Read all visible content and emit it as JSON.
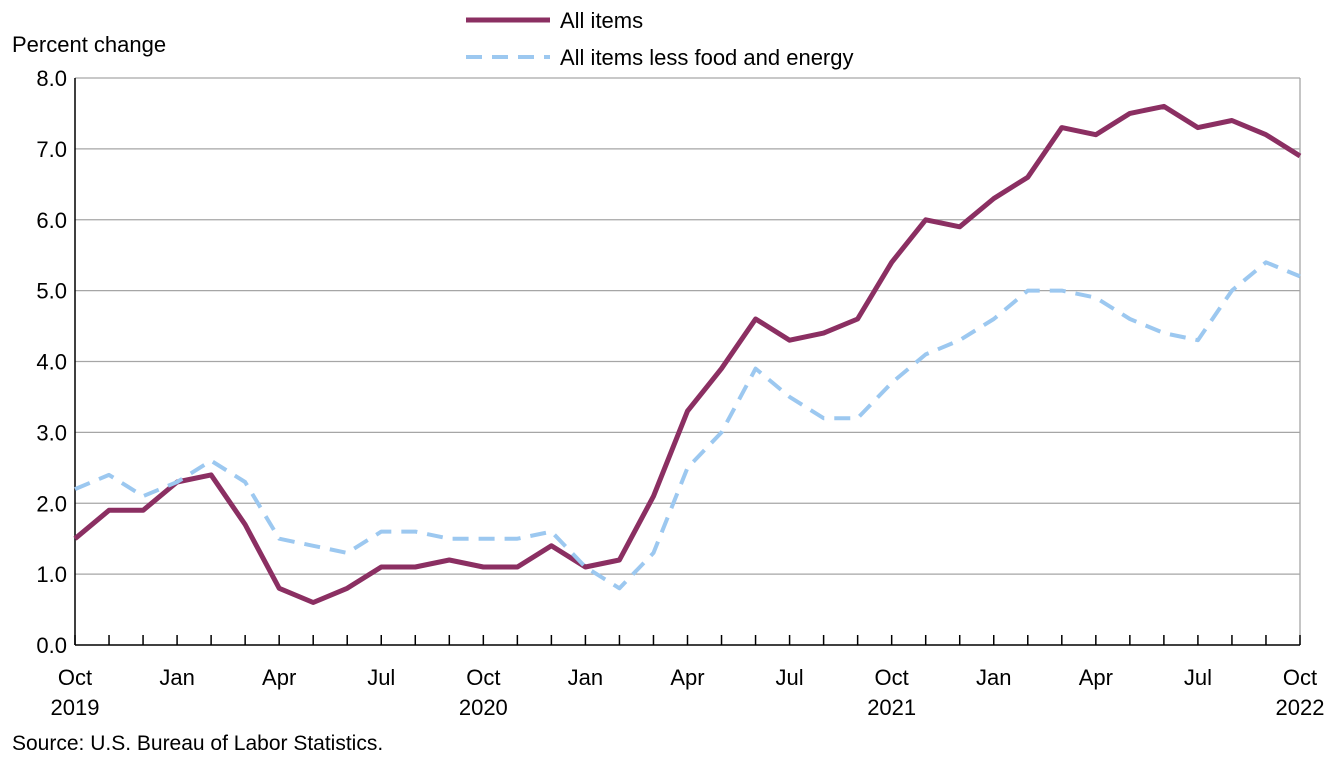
{
  "chart_data": {
    "type": "line",
    "ylabel": "Percent change",
    "ylim": [
      0,
      8
    ],
    "yticks": [
      "0.0",
      "1.0",
      "2.0",
      "3.0",
      "4.0",
      "5.0",
      "6.0",
      "7.0",
      "8.0"
    ],
    "x": [
      "Oct 2019",
      "Nov 2019",
      "Dec 2019",
      "Jan 2020",
      "Feb 2020",
      "Mar 2020",
      "Apr 2020",
      "May 2020",
      "Jun 2020",
      "Jul 2020",
      "Aug 2020",
      "Sep 2020",
      "Oct 2020",
      "Nov 2020",
      "Dec 2020",
      "Jan 2021",
      "Feb 2021",
      "Mar 2021",
      "Apr 2021",
      "May 2021",
      "Jun 2021",
      "Jul 2021",
      "Aug 2021",
      "Sep 2021",
      "Oct 2021",
      "Nov 2021",
      "Dec 2021",
      "Jan 2022",
      "Feb 2022",
      "Mar 2022",
      "Apr 2022",
      "May 2022",
      "Jun 2022",
      "Jul 2022",
      "Aug 2022",
      "Sep 2022",
      "Oct 2022"
    ],
    "xtick_labels": [
      {
        "index": 0,
        "line1": "Oct",
        "line2": "2019"
      },
      {
        "index": 3,
        "line1": "Jan",
        "line2": ""
      },
      {
        "index": 6,
        "line1": "Apr",
        "line2": ""
      },
      {
        "index": 9,
        "line1": "Jul",
        "line2": ""
      },
      {
        "index": 12,
        "line1": "Oct",
        "line2": "2020"
      },
      {
        "index": 15,
        "line1": "Jan",
        "line2": ""
      },
      {
        "index": 18,
        "line1": "Apr",
        "line2": ""
      },
      {
        "index": 21,
        "line1": "Jul",
        "line2": ""
      },
      {
        "index": 24,
        "line1": "Oct",
        "line2": "2021"
      },
      {
        "index": 27,
        "line1": "Jan",
        "line2": ""
      },
      {
        "index": 30,
        "line1": "Apr",
        "line2": ""
      },
      {
        "index": 33,
        "line1": "Jul",
        "line2": ""
      },
      {
        "index": 36,
        "line1": "Oct",
        "line2": "2022"
      }
    ],
    "series": [
      {
        "name": "All items",
        "color": "#8b2f62",
        "style": "solid",
        "values": [
          1.5,
          1.9,
          1.9,
          2.3,
          2.4,
          1.7,
          0.8,
          0.6,
          0.8,
          1.1,
          1.1,
          1.2,
          1.1,
          1.1,
          1.4,
          1.1,
          1.2,
          2.1,
          3.3,
          3.9,
          4.6,
          4.3,
          4.4,
          4.6,
          5.4,
          6.0,
          5.9,
          6.3,
          6.6,
          7.3,
          7.2,
          7.5,
          7.6,
          7.3,
          7.4,
          7.2,
          6.9
        ]
      },
      {
        "name": "All items less food and energy",
        "color": "#9cc8f0",
        "style": "dashed",
        "values": [
          2.2,
          2.4,
          2.1,
          2.3,
          2.6,
          2.3,
          1.5,
          1.4,
          1.3,
          1.6,
          1.6,
          1.5,
          1.5,
          1.5,
          1.6,
          1.1,
          0.8,
          1.3,
          2.5,
          3.0,
          3.9,
          3.5,
          3.2,
          3.2,
          3.7,
          4.1,
          4.3,
          4.6,
          5.0,
          5.0,
          4.9,
          4.6,
          4.4,
          4.3,
          5.0,
          5.4,
          5.2
        ]
      }
    ],
    "grid": true,
    "legend_position": "top-center"
  },
  "source": "Source: U.S. Bureau of Labor Statistics."
}
